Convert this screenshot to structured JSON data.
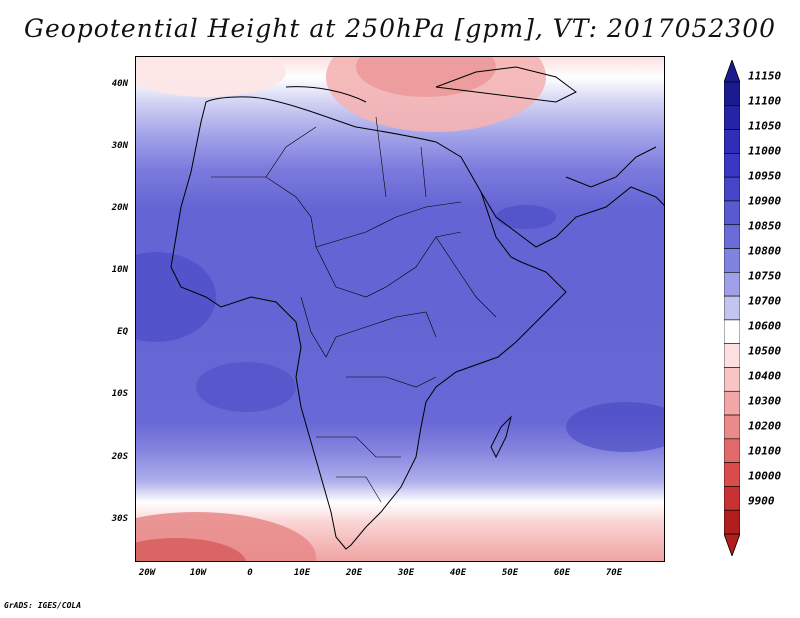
{
  "title": "Geopotential Height at 250hPa [gpm], VT: 2017052300",
  "credit": "GrADS: IGES/COLA",
  "map": {
    "variable": "Geopotential Height",
    "level": "250hPa",
    "units": "gpm",
    "valid_time": "2017052300",
    "lat_labels": [
      "40N",
      "30N",
      "20N",
      "10N",
      "EQ",
      "10S",
      "20S",
      "30S"
    ],
    "lon_labels": [
      "20W",
      "10W",
      "0",
      "10E",
      "20E",
      "30E",
      "40E",
      "50E",
      "60E",
      "70E"
    ],
    "lat_values": [
      40,
      30,
      20,
      10,
      0,
      -10,
      -20,
      -30
    ],
    "lon_values": [
      -20,
      -10,
      0,
      10,
      20,
      30,
      40,
      50,
      60,
      70
    ],
    "lon_range": [
      -22,
      80
    ],
    "lat_range": [
      -37,
      44
    ],
    "colorbar": {
      "levels": [
        "11150",
        "11100",
        "11050",
        "11000",
        "10950",
        "10900",
        "10850",
        "10800",
        "10750",
        "10700",
        "10600",
        "10500",
        "10400",
        "10300",
        "10200",
        "10100",
        "10000",
        "9900"
      ],
      "colors": [
        "#1b1b8f",
        "#2424a6",
        "#2e2eb8",
        "#3838c2",
        "#4646c8",
        "#5a5ad0",
        "#6c6cd8",
        "#8282e0",
        "#a0a0e8",
        "#c4c4f0",
        "#ffffff",
        "#fce0e0",
        "#f8c4c4",
        "#f2a6a6",
        "#ea8a8a",
        "#e26a6a",
        "#da4c4c",
        "#c83232",
        "#b01e1e"
      ],
      "arrow_top": "#1b1b8f",
      "arrow_bottom": "#b01e1e"
    }
  }
}
